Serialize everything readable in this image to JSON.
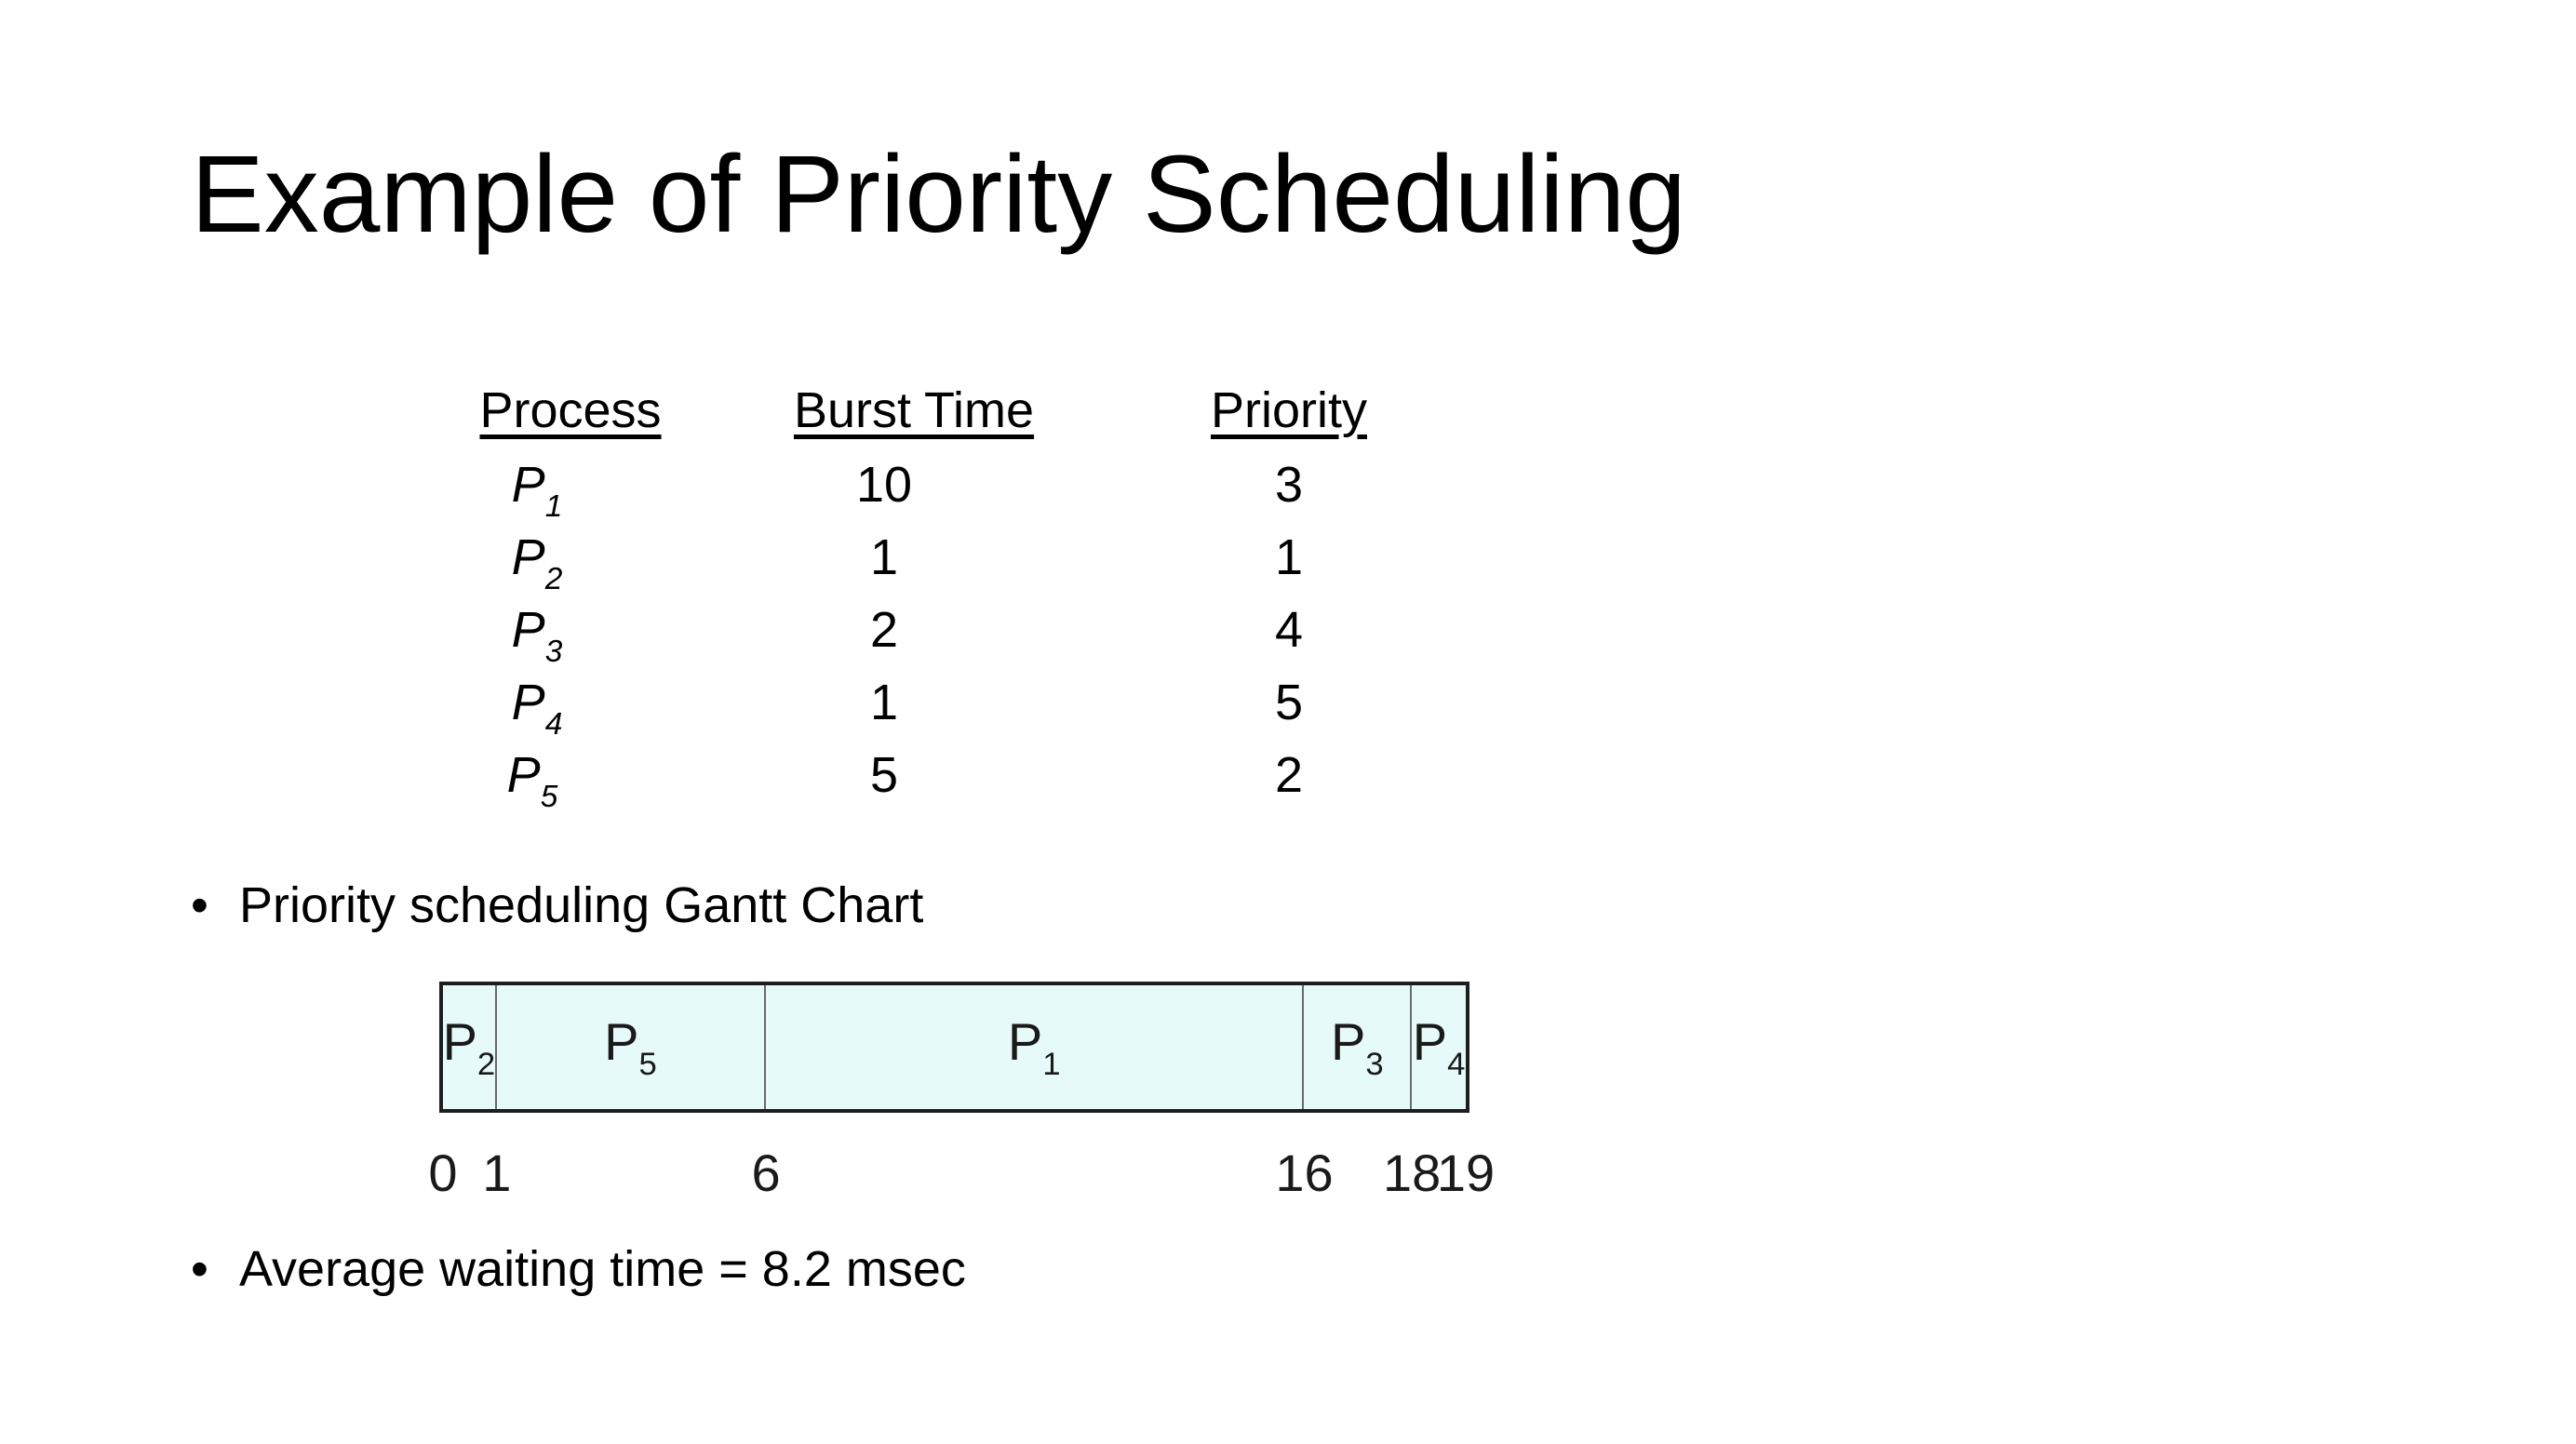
{
  "title": "Example of Priority Scheduling",
  "table": {
    "headers": [
      "Process",
      "Burst Time",
      "Priority"
    ],
    "rows": [
      {
        "process": "P",
        "sub": "1",
        "burst": "10",
        "priority": "3"
      },
      {
        "process": "P",
        "sub": "2",
        "burst": "1",
        "priority": "1"
      },
      {
        "process": "P",
        "sub": "3",
        "burst": "2",
        "priority": "4"
      },
      {
        "process": "P",
        "sub": "4",
        "burst": "1",
        "priority": "5"
      },
      {
        "process": "P",
        "sub": "5",
        "burst": "5",
        "priority": "2"
      }
    ]
  },
  "bullets": {
    "gantt_label": "Priority scheduling Gantt Chart",
    "average": "Average waiting time = 8.2 msec",
    "symbol": "•"
  },
  "gantt": {
    "colors": {
      "fill": "#e6fbf9",
      "border": "#1e1e1e"
    },
    "segments": [
      {
        "process": "P",
        "sub": "2",
        "start": 0,
        "end": 1
      },
      {
        "process": "P",
        "sub": "5",
        "start": 1,
        "end": 6
      },
      {
        "process": "P",
        "sub": "1",
        "start": 6,
        "end": 16
      },
      {
        "process": "P",
        "sub": "3",
        "start": 16,
        "end": 18
      },
      {
        "process": "P",
        "sub": "4",
        "start": 18,
        "end": 19
      }
    ],
    "ticks": [
      "0",
      "1",
      "6",
      "16",
      "18",
      "19"
    ]
  }
}
